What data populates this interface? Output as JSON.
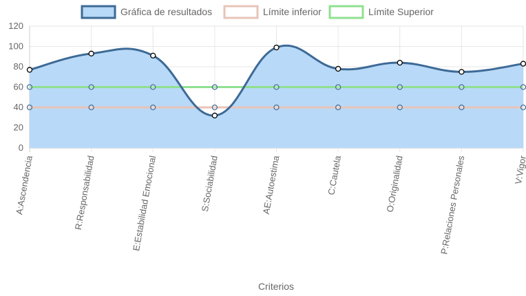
{
  "chart_data": {
    "type": "line",
    "xlabel": "Criterios",
    "ylabel": "",
    "ylim": [
      0,
      120
    ],
    "yticks": [
      0,
      20,
      40,
      60,
      80,
      100,
      120
    ],
    "grid": true,
    "legend_position": "top",
    "categories": [
      "A:Ascendencia",
      "R:Responsabilidad",
      "E:Estabilidad Emocional",
      "S:Sociabilidad",
      "AE:Autoestima",
      "C:Cautela",
      "O:Originalidad",
      "P:Relaciones Personales",
      "V:Vigor"
    ],
    "series": [
      {
        "name": "Gráfica de resultados",
        "values": [
          77,
          93,
          91,
          32,
          99,
          78,
          84,
          75,
          83
        ],
        "color": "#3d6a96",
        "fill": "#b8d9f7",
        "filled": true
      },
      {
        "name": "Límite inferior",
        "values": [
          40,
          40,
          40,
          40,
          40,
          40,
          40,
          40,
          40
        ],
        "color": "#e8c4b8",
        "filled": false
      },
      {
        "name": "Límite Superior",
        "values": [
          60,
          60,
          60,
          60,
          60,
          60,
          60,
          60,
          60
        ],
        "color": "#90e090",
        "filled": false
      }
    ]
  }
}
